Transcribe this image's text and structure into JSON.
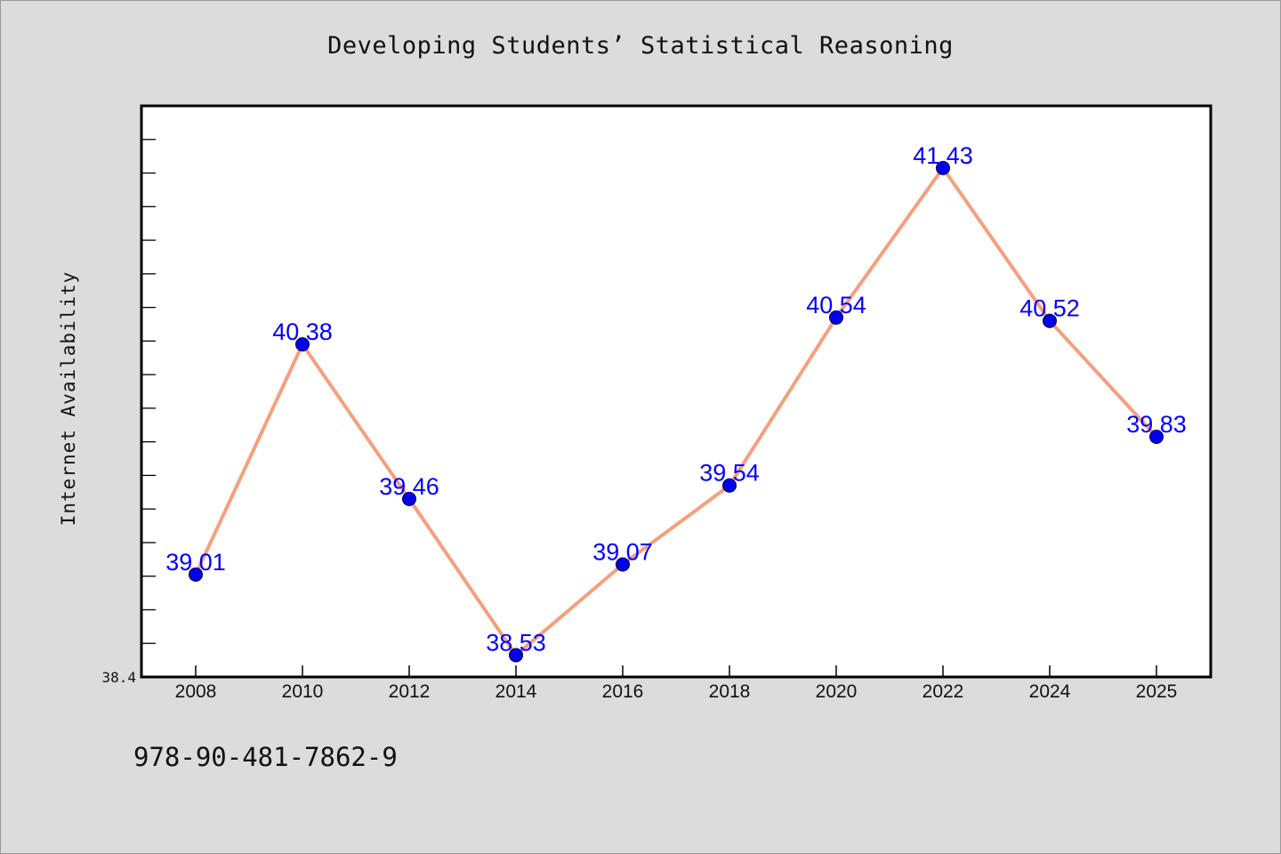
{
  "chart_data": {
    "type": "line",
    "title": "Developing Students’ Statistical Reasoning",
    "xlabel": "",
    "ylabel": "Internet Availability",
    "categories": [
      "2008",
      "2010",
      "2012",
      "2014",
      "2016",
      "2018",
      "2020",
      "2022",
      "2024",
      "2025"
    ],
    "values": [
      39.01,
      40.38,
      39.46,
      38.53,
      39.07,
      39.54,
      40.54,
      41.43,
      40.52,
      39.83
    ],
    "data_labels": [
      "39.01",
      "40.38",
      "39.46",
      "38.53",
      "39.07",
      "39.54",
      "40.54",
      "41.43",
      "40.52",
      "39.83"
    ],
    "yticks": [
      {
        "value": 38.4,
        "label": "38.4"
      }
    ],
    "ylim": [
      38.4,
      41.8
    ],
    "grid": false,
    "legend": "none",
    "colors": {
      "line": "#f4a07e",
      "marker": "#0000ee",
      "marker_edge": "#000033",
      "label": "#0000ff",
      "background": "#dcdcdc",
      "plot_background": "#ffffff"
    }
  },
  "footer": {
    "isbn": "978-90-481-7862-9"
  }
}
